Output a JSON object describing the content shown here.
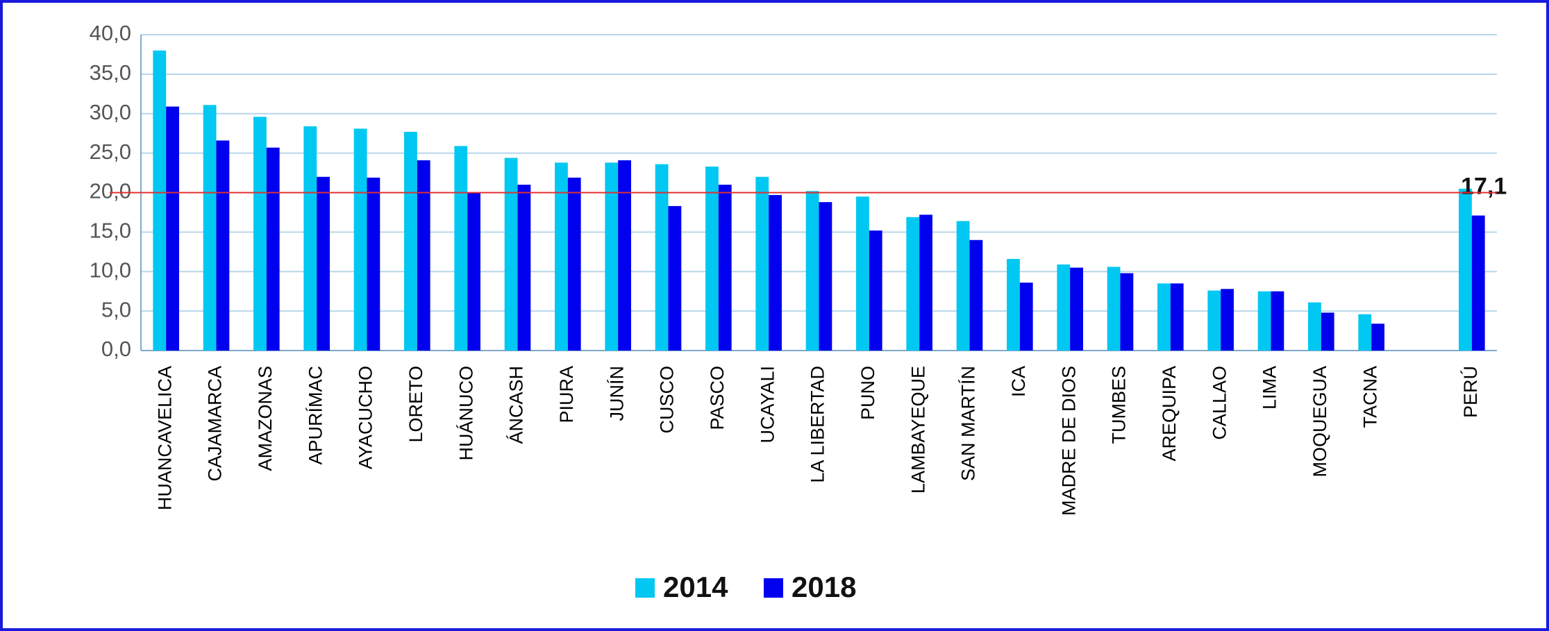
{
  "chart_data": {
    "type": "bar",
    "categories": [
      "HUANCAVELICA",
      "CAJAMARCA",
      "AMAZONAS",
      "APURÍMAC",
      "AYACUCHO",
      "LORETO",
      "HUÁNUCO",
      "ÁNCASH",
      "PIURA",
      "JUNÍN",
      "CUSCO",
      "PASCO",
      "UCAYALI",
      "LA LIBERTAD",
      "PUNO",
      "LAMBAYEQUE",
      "SAN MARTÍN",
      "ICA",
      "MADRE DE DIOS",
      "TUMBES",
      "AREQUIPA",
      "CALLAO",
      "LIMA",
      "MOQUEGUA",
      "TACNA",
      null,
      "PERÚ"
    ],
    "series": [
      {
        "name": "2014",
        "color": "#00c8f2",
        "values": [
          38.0,
          31.1,
          29.6,
          28.4,
          28.1,
          27.7,
          25.9,
          24.4,
          23.8,
          23.8,
          23.6,
          23.3,
          22.0,
          20.2,
          19.5,
          16.9,
          16.4,
          11.6,
          10.9,
          10.6,
          8.5,
          7.6,
          7.5,
          6.1,
          4.6,
          null,
          20.5
        ]
      },
      {
        "name": "2018",
        "color": "#0000ee",
        "values": [
          30.9,
          26.6,
          25.7,
          22.0,
          21.9,
          24.1,
          20.0,
          21.0,
          21.9,
          24.1,
          18.3,
          21.0,
          19.7,
          18.8,
          15.2,
          17.2,
          14.0,
          8.6,
          10.5,
          9.8,
          8.5,
          7.8,
          7.5,
          4.8,
          3.4,
          null,
          17.1
        ],
        "value_labels": [
          null,
          null,
          null,
          null,
          null,
          null,
          null,
          null,
          null,
          null,
          null,
          null,
          null,
          null,
          null,
          null,
          null,
          null,
          null,
          null,
          null,
          null,
          null,
          null,
          null,
          null,
          "17,1"
        ]
      }
    ],
    "ylim": [
      0,
      40
    ],
    "yticks": [
      {
        "value": 0,
        "label": "0,0"
      },
      {
        "value": 5,
        "label": "5,0"
      },
      {
        "value": 10,
        "label": "10,0"
      },
      {
        "value": 15,
        "label": "15,0"
      },
      {
        "value": 20,
        "label": "20,0"
      },
      {
        "value": 25,
        "label": "25,0"
      },
      {
        "value": 30,
        "label": "30,0"
      },
      {
        "value": 35,
        "label": "35,0"
      },
      {
        "value": 40,
        "label": "40,0"
      }
    ],
    "grid": true,
    "reference_line": {
      "value": 20,
      "color": "#e03030"
    },
    "legend": "bottom"
  }
}
